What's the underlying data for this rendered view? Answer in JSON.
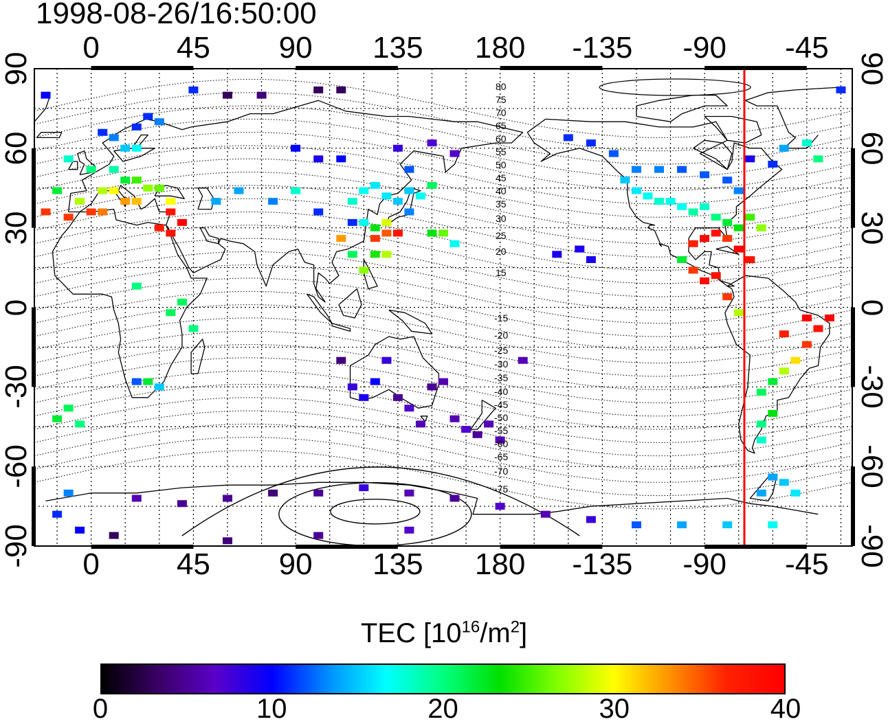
{
  "timestamp": "1998-08-26/16:50:00",
  "lon_ticks_top": [
    "0",
    "45",
    "90",
    "135",
    "180",
    "-135",
    "-90",
    "-45"
  ],
  "lon_ticks_bottom": [
    "0",
    "45",
    "90",
    "135",
    "180",
    "-135",
    "-90",
    "-45"
  ],
  "lat_ticks_left": [
    "90",
    "60",
    "30",
    "0",
    "-30",
    "-60",
    "-90"
  ],
  "lat_ticks_right": [
    "90",
    "60",
    "30",
    "0",
    "-30",
    "-60",
    "-90"
  ],
  "contour_labels": [
    "80",
    "75",
    "70",
    "65",
    "60",
    "55",
    "50",
    "45",
    "40",
    "35",
    "30",
    "25",
    "20",
    "15",
    "-15",
    "-20",
    "-25",
    "-30",
    "-35",
    "-40",
    "-45",
    "-50",
    "-55",
    "-60",
    "-65",
    "-70",
    "-75"
  ],
  "colorbar": {
    "title_main": "TEC  [10",
    "title_exp": "16",
    "title_mid": "/m",
    "title_exp2": "2",
    "title_end": "]",
    "ticks": [
      "0",
      "10",
      "20",
      "30",
      "40"
    ],
    "stops": [
      "#000000",
      "#3a0066",
      "#5a00c8",
      "#0000ff",
      "#0090ff",
      "#00ffff",
      "#00ff80",
      "#00e000",
      "#80ff00",
      "#ffff00",
      "#ff9000",
      "#ff2000",
      "#ff0000"
    ],
    "min": 0,
    "max": 40
  },
  "map": {
    "lon_range": [
      -25,
      335
    ],
    "lat_range": [
      -90,
      90
    ],
    "terminator_lon": -72.5,
    "terminator_color": "#ff0000",
    "regions": [
      {
        "name": "europe",
        "cells": [
          [
            10,
            52,
            19
          ],
          [
            0,
            52,
            20
          ],
          [
            15,
            48,
            22
          ],
          [
            20,
            48,
            25
          ],
          [
            25,
            45,
            27
          ],
          [
            30,
            45,
            26
          ],
          [
            5,
            44,
            28
          ],
          [
            10,
            44,
            30
          ],
          [
            15,
            40,
            33
          ],
          [
            20,
            40,
            32
          ],
          [
            35,
            40,
            30
          ],
          [
            -5,
            40,
            28
          ],
          [
            0,
            36,
            36
          ],
          [
            5,
            36,
            34
          ],
          [
            35,
            36,
            38
          ],
          [
            40,
            32,
            40
          ],
          [
            30,
            30,
            37
          ],
          [
            -10,
            34,
            36
          ],
          [
            15,
            60,
            15
          ],
          [
            20,
            60,
            17
          ],
          [
            10,
            64,
            13
          ],
          [
            5,
            66,
            11
          ],
          [
            20,
            68,
            11
          ],
          [
            25,
            72,
            11
          ],
          [
            30,
            70,
            13
          ],
          [
            -10,
            56,
            18
          ],
          [
            -15,
            44,
            22
          ],
          [
            -20,
            36,
            36
          ],
          [
            35,
            28,
            38
          ]
        ]
      },
      {
        "name": "asia",
        "cells": [
          [
            120,
            44,
            17
          ],
          [
            125,
            46,
            16
          ],
          [
            130,
            42,
            16
          ],
          [
            135,
            40,
            15
          ],
          [
            140,
            36,
            13
          ],
          [
            120,
            32,
            17
          ],
          [
            125,
            30,
            23
          ],
          [
            130,
            28,
            35
          ],
          [
            135,
            28,
            38
          ],
          [
            130,
            32,
            29
          ],
          [
            125,
            26,
            36
          ],
          [
            145,
            42,
            17
          ],
          [
            150,
            46,
            21
          ],
          [
            115,
            40,
            18
          ],
          [
            140,
            44,
            15
          ],
          [
            125,
            20,
            24
          ],
          [
            130,
            20,
            28
          ],
          [
            150,
            28,
            23
          ],
          [
            155,
            28,
            26
          ],
          [
            160,
            24,
            17
          ],
          [
            110,
            26,
            33
          ],
          [
            120,
            14,
            27
          ],
          [
            115,
            20,
            21
          ]
        ]
      },
      {
        "name": "north-america",
        "cells": [
          [
            -125,
            48,
            15
          ],
          [
            -120,
            44,
            16
          ],
          [
            -115,
            42,
            17
          ],
          [
            -110,
            40,
            18
          ],
          [
            -105,
            40,
            17
          ],
          [
            -100,
            38,
            17
          ],
          [
            -95,
            36,
            19
          ],
          [
            -90,
            38,
            18
          ],
          [
            -85,
            34,
            20
          ],
          [
            -80,
            32,
            22
          ],
          [
            -75,
            30,
            23
          ],
          [
            -80,
            26,
            36
          ],
          [
            -85,
            28,
            38
          ],
          [
            -90,
            26,
            39
          ],
          [
            -95,
            24,
            37
          ],
          [
            -75,
            22,
            40
          ],
          [
            -70,
            18,
            38
          ],
          [
            -65,
            30,
            27
          ],
          [
            -70,
            34,
            25
          ],
          [
            -120,
            52,
            13
          ],
          [
            -110,
            52,
            13
          ],
          [
            -100,
            52,
            12
          ],
          [
            -90,
            50,
            12
          ],
          [
            -80,
            48,
            12
          ],
          [
            -75,
            44,
            13
          ],
          [
            -130,
            58,
            12
          ],
          [
            -140,
            62,
            11
          ],
          [
            -150,
            64,
            11
          ],
          [
            -100,
            18,
            22
          ],
          [
            -90,
            10,
            39
          ],
          [
            -85,
            12,
            38
          ],
          [
            -95,
            14,
            36
          ],
          [
            -80,
            4,
            36
          ],
          [
            -75,
            -2,
            28
          ]
        ]
      },
      {
        "name": "south-america",
        "cells": [
          [
            -60,
            -28,
            22
          ],
          [
            -65,
            -32,
            21
          ],
          [
            -55,
            -24,
            28
          ],
          [
            -50,
            -20,
            31
          ],
          [
            -45,
            -14,
            36
          ],
          [
            -40,
            -8,
            38
          ],
          [
            -35,
            -4,
            40
          ],
          [
            -45,
            -4,
            40
          ],
          [
            -55,
            -10,
            37
          ],
          [
            -60,
            -40,
            23
          ],
          [
            -65,
            -44,
            20
          ],
          [
            -65,
            -50,
            18
          ],
          [
            -60,
            -64,
            14
          ],
          [
            -55,
            -66,
            15
          ],
          [
            -65,
            -70,
            14
          ],
          [
            -50,
            -70,
            16
          ]
        ]
      },
      {
        "name": "oceania",
        "cells": [
          [
            150,
            -30,
            5
          ],
          [
            155,
            -28,
            6
          ],
          [
            160,
            -42,
            6
          ],
          [
            165,
            -46,
            7
          ],
          [
            170,
            -48,
            5
          ],
          [
            175,
            -44,
            6
          ],
          [
            180,
            -50,
            6
          ],
          [
            115,
            -30,
            8
          ],
          [
            120,
            -34,
            9
          ],
          [
            125,
            -28,
            10
          ],
          [
            135,
            -34,
            5
          ],
          [
            140,
            -38,
            7
          ],
          [
            145,
            -44,
            6
          ],
          [
            130,
            -20,
            8
          ],
          [
            110,
            -20,
            4
          ],
          [
            190,
            -20,
            6
          ],
          [
            215,
            22,
            9
          ],
          [
            220,
            18,
            9
          ],
          [
            205,
            20,
            9
          ]
        ]
      },
      {
        "name": "antarctica",
        "cells": [
          [
            20,
            -72,
            6
          ],
          [
            40,
            -74,
            5
          ],
          [
            60,
            -72,
            5
          ],
          [
            80,
            -70,
            4
          ],
          [
            100,
            -70,
            5
          ],
          [
            120,
            -68,
            8
          ],
          [
            140,
            -70,
            6
          ],
          [
            160,
            -72,
            5
          ],
          [
            180,
            -75,
            7
          ],
          [
            200,
            -78,
            6
          ],
          [
            220,
            -80,
            8
          ],
          [
            240,
            -82,
            12
          ],
          [
            260,
            -82,
            14
          ],
          [
            280,
            -82,
            15
          ],
          [
            300,
            -82,
            17
          ],
          [
            10,
            -86,
            3
          ],
          [
            60,
            -88,
            4
          ],
          [
            100,
            -86,
            5
          ],
          [
            140,
            -84,
            7
          ],
          [
            -10,
            -70,
            13
          ],
          [
            -15,
            -78,
            11
          ],
          [
            -5,
            -84,
            10
          ]
        ]
      },
      {
        "name": "arctic-scatter",
        "cells": [
          [
            45,
            82,
            11
          ],
          [
            60,
            80,
            3
          ],
          [
            75,
            80,
            4
          ],
          [
            100,
            82,
            3
          ],
          [
            110,
            82,
            3
          ],
          [
            -20,
            80,
            10
          ],
          [
            -30,
            82,
            11
          ],
          [
            90,
            60,
            10
          ],
          [
            100,
            56,
            9
          ],
          [
            110,
            56,
            10
          ],
          [
            135,
            60,
            8
          ],
          [
            150,
            62,
            7
          ],
          [
            160,
            58,
            7
          ],
          [
            140,
            52,
            12
          ],
          [
            90,
            44,
            18
          ],
          [
            80,
            40,
            13
          ],
          [
            100,
            36,
            11
          ],
          [
            115,
            32,
            11
          ],
          [
            65,
            44,
            14
          ],
          [
            55,
            40,
            14
          ],
          [
            -55,
            60,
            14
          ],
          [
            -45,
            62,
            18
          ],
          [
            -40,
            56,
            20
          ],
          [
            -60,
            54,
            11
          ],
          [
            -70,
            56,
            9
          ]
        ]
      },
      {
        "name": "africa",
        "cells": [
          [
            20,
            -28,
            12
          ],
          [
            30,
            -30,
            15
          ],
          [
            25,
            -28,
            22
          ],
          [
            -15,
            -42,
            22
          ],
          [
            -10,
            -38,
            21
          ],
          [
            -5,
            -44,
            20
          ],
          [
            40,
            2,
            21
          ],
          [
            35,
            -2,
            21
          ],
          [
            45,
            -8,
            20
          ],
          [
            20,
            8,
            20
          ]
        ]
      }
    ]
  }
}
